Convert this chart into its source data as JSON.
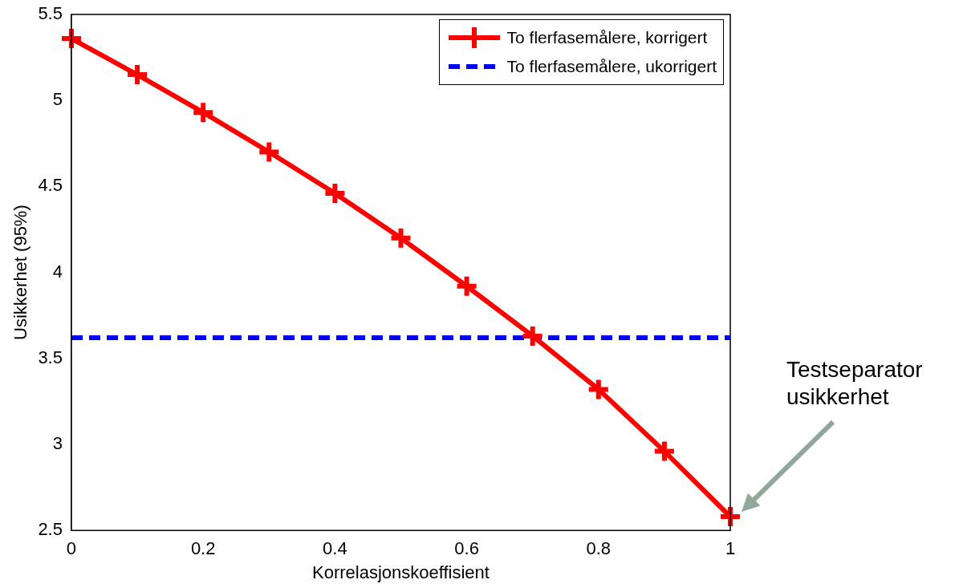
{
  "chart_data": {
    "type": "line",
    "xlabel": "Korrelasjonskoeffisient",
    "ylabel": "Usikkerhet (95%)",
    "xlim": [
      0,
      1
    ],
    "xticks": [
      0,
      0.2,
      0.4,
      0.6,
      0.8,
      1
    ],
    "ylim": [
      2.5,
      5.5
    ],
    "yticks": [
      2.5,
      3,
      3.5,
      4,
      4.5,
      5,
      5.5
    ],
    "grid": false,
    "legend": "top right",
    "series": [
      {
        "name": "To flerfasemålere, korrigert",
        "color": "#ff0000",
        "marker": "cross",
        "line_style": "solid",
        "x": [
          0,
          0.1,
          0.2,
          0.3,
          0.4,
          0.5,
          0.6,
          0.7,
          0.8,
          0.9,
          1
        ],
        "values": [
          5.36,
          5.15,
          4.93,
          4.7,
          4.46,
          4.2,
          3.92,
          3.63,
          3.32,
          2.96,
          2.58
        ]
      },
      {
        "name": "To flerfasemålere, ukorrigert",
        "color": "#0000ff",
        "marker": "none",
        "line_style": "dashed",
        "x": [
          0,
          1
        ],
        "values": [
          3.62,
          3.62
        ]
      }
    ],
    "annotations": [
      "Testseparator usikkerhet"
    ]
  }
}
